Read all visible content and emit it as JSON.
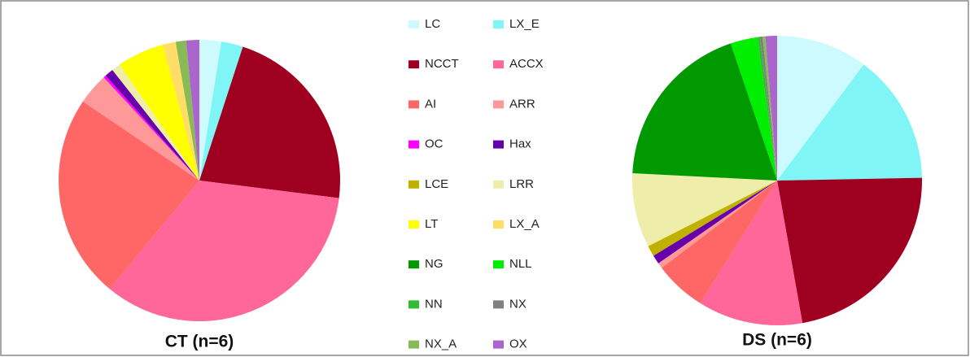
{
  "chart_data": [
    {
      "type": "pie",
      "title": "CT (n=6)",
      "categories": [
        "LC",
        "LX_E",
        "NCCT",
        "ACCX",
        "AI",
        "ARR",
        "OC",
        "Hax",
        "LCE",
        "LRR",
        "LT",
        "LX_A",
        "NG",
        "NLL",
        "NN",
        "NX",
        "NX_A",
        "OX"
      ],
      "colors": [
        "#ccfaff",
        "#7ff5f5",
        "#a00020",
        "#ff6699",
        "#ff6666",
        "#ff9999",
        "#ff00ff",
        "#6600aa",
        "#c0b000",
        "#eeeeaa",
        "#ffff00",
        "#ffdd66",
        "#009900",
        "#00ee00",
        "#33bb33",
        "#808080",
        "#88bb55",
        "#aa66cc"
      ],
      "values": [
        2.5,
        2.5,
        22,
        34,
        23.5,
        3.6,
        0.3,
        1,
        0,
        1,
        5.4,
        1.5,
        0,
        0,
        0,
        0,
        1.2,
        1.5
      ]
    },
    {
      "type": "pie",
      "title": "DS (n=6)",
      "values": [
        10.2,
        14.5,
        22.5,
        11.7,
        5.8,
        0.6,
        0,
        1,
        1.2,
        8.3,
        0,
        0,
        19,
        3,
        0.3,
        0.3,
        0.3,
        1.3
      ]
    }
  ]
}
